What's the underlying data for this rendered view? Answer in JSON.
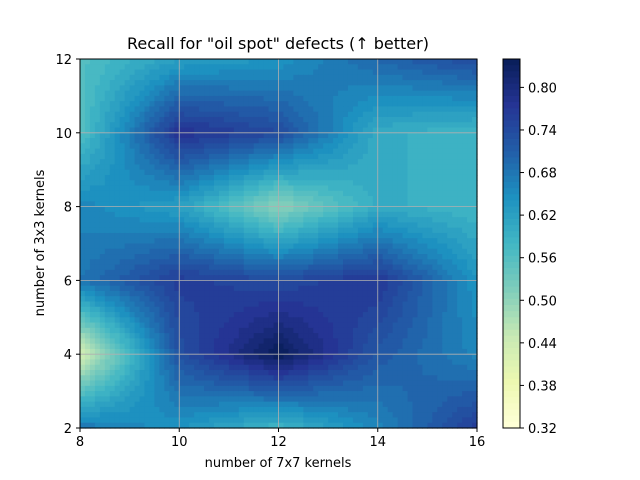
{
  "chart_data": {
    "type": "heatmap",
    "title": "Recall for \"oil spot\" defects (↑ better)",
    "xlabel": "number of 7x7 kernels",
    "ylabel": "number of 3x3 kernels",
    "x": [
      8,
      10,
      12,
      14,
      16
    ],
    "y": [
      2,
      4,
      6,
      8,
      10,
      12
    ],
    "xlim": [
      8,
      16
    ],
    "ylim": [
      2,
      12
    ],
    "x_ticks": [
      "8",
      "10",
      "12",
      "14",
      "16"
    ],
    "y_ticks": [
      "2",
      "4",
      "6",
      "8",
      "10",
      "12"
    ],
    "z": [
      [
        0.68,
        0.64,
        0.58,
        0.66,
        0.76
      ],
      [
        0.42,
        0.73,
        0.84,
        0.72,
        0.66
      ],
      [
        0.68,
        0.76,
        0.74,
        0.77,
        0.64
      ],
      [
        0.66,
        0.62,
        0.5,
        0.6,
        0.58
      ],
      [
        0.56,
        0.78,
        0.74,
        0.6,
        0.58
      ],
      [
        0.56,
        0.62,
        0.64,
        0.7,
        0.74
      ]
    ],
    "colorbar": {
      "min": 0.32,
      "max": 0.84,
      "ticks": [
        "0.32",
        "0.38",
        "0.44",
        "0.50",
        "0.56",
        "0.62",
        "0.68",
        "0.74",
        "0.80"
      ],
      "colormap": "YlGnBu"
    },
    "grid": true
  }
}
